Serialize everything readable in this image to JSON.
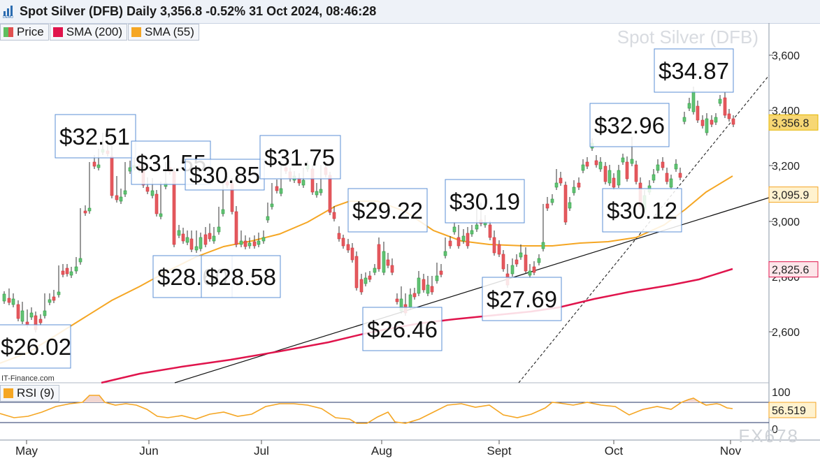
{
  "header": {
    "title": "Spot Silver (DFB) Daily 3,356.8 -0.52% 31 Oct 2024, 08:46:28"
  },
  "legend": {
    "items": [
      {
        "label": "Price",
        "color": "#5fbf5f"
      },
      {
        "label": "SMA (200)",
        "color": "#e0144c"
      },
      {
        "label": "SMA (55)",
        "color": "#f5a623"
      }
    ]
  },
  "watermark": "Spot Silver (DFB)",
  "credit": "IT-Finance.com",
  "rsi_legend": {
    "label": "RSI (9)",
    "color": "#f5a623"
  },
  "fx_mark": "FX678",
  "chart_data": {
    "type": "candlestick",
    "y_axis": {
      "ticks": [
        "3,600",
        "3,400",
        "3,200",
        "3,000",
        "2,800",
        "2,600"
      ],
      "range": [
        2500,
        3700
      ]
    },
    "x_axis": {
      "ticks": [
        "May",
        "Jun",
        "Jul",
        "Aug",
        "Sept",
        "Oct",
        "Nov"
      ]
    },
    "price_badges": [
      {
        "label": "3,356.8",
        "value": 3356.8,
        "bg": "#f7d774",
        "border": "#e5b700"
      },
      {
        "label": "3,095.9",
        "value": 3095.9,
        "bg": "#fff2cf",
        "border": "#f5a623"
      },
      {
        "label": "2,825.6",
        "value": 2825.6,
        "bg": "#fde6ea",
        "border": "#e0144c"
      }
    ],
    "annotations": [
      {
        "text": "$32.51"
      },
      {
        "text": "$31.55"
      },
      {
        "text": "$30.85"
      },
      {
        "text": "$31.75"
      },
      {
        "text": "$28.60"
      },
      {
        "text": "$28.58"
      },
      {
        "text": "$26.02"
      },
      {
        "text": "$29.22"
      },
      {
        "text": "$26.46"
      },
      {
        "text": "$30.19"
      },
      {
        "text": "$27.69"
      },
      {
        "text": "$32.96"
      },
      {
        "text": "$30.12"
      },
      {
        "text": "$34.87"
      }
    ],
    "series": [
      {
        "name": "SMA (200)",
        "color": "#e0144c"
      },
      {
        "name": "SMA (55)",
        "color": "#f5a623"
      }
    ],
    "rsi": {
      "name": "RSI (9)",
      "value": "56.519",
      "ticks": [
        "100",
        "0"
      ],
      "levels": [
        70,
        30
      ]
    }
  }
}
